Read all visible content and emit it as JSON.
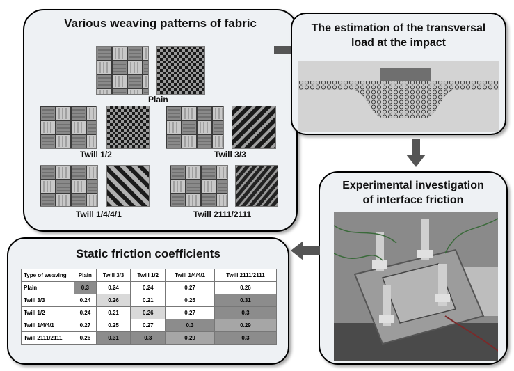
{
  "panels": {
    "weaving": {
      "title": "Various weaving patterns of fabric",
      "patterns": [
        "Plain",
        "Twill 1/2",
        "Twill 3/3",
        "Twill 1/4/4/1",
        "Twill 2111/2111"
      ]
    },
    "estimation": {
      "title_line1": "The estimation of the transversal",
      "title_line2": "load at the impact"
    },
    "experimental": {
      "title_line1": "Experimental investigation",
      "title_line2": "of interface friction"
    },
    "friction": {
      "title": "Static friction coefficients",
      "table": {
        "header": [
          "Type of weaving",
          "Plain",
          "Twill 3/3",
          "Twill 1/2",
          "Twill 1/4/4/1",
          "Twill 2111/2111"
        ],
        "rows": [
          [
            "Plain",
            "0.3",
            "0.24",
            "0.24",
            "0.27",
            "0.26"
          ],
          [
            "Twill 3/3",
            "0.24",
            "0.26",
            "0.21",
            "0.25",
            "0.31"
          ],
          [
            "Twill 1/2",
            "0.24",
            "0.21",
            "0.26",
            "0.27",
            "0.3"
          ],
          [
            "Twill 1/4/4/1",
            "0.27",
            "0.25",
            "0.27",
            "0.3",
            "0.29"
          ],
          [
            "Twill 2111/2111",
            "0.26",
            "0.31",
            "0.3",
            "0.29",
            "0.3"
          ]
        ]
      }
    }
  },
  "colors": {
    "arrow": "#555555",
    "border": "#000000",
    "panel_bg": "#eef1f4"
  }
}
